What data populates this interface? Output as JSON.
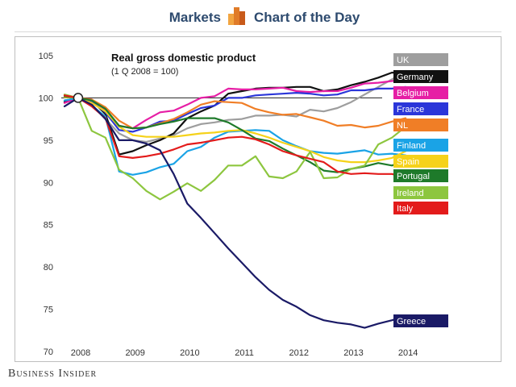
{
  "header": {
    "section": "Markets",
    "feature": "Chart of the Day",
    "logo_colors": [
      "#f2a541",
      "#e07b28",
      "#c85a1a"
    ]
  },
  "footer": {
    "brand": "Business Insider"
  },
  "chart_data": {
    "type": "line",
    "title": "Real gross domestic product",
    "subtitle": "(1 Q 2008 = 100)",
    "xlabel": "",
    "ylabel": "",
    "ylim": [
      70,
      105
    ],
    "yticks": [
      70,
      75,
      80,
      85,
      90,
      95,
      100,
      105
    ],
    "xlim": [
      2008,
      2014.5
    ],
    "xticks": [
      {
        "label": "2008",
        "value": 2008
      },
      {
        "label": "2009",
        "value": 2009
      },
      {
        "label": "2010",
        "value": 2010
      },
      {
        "label": "2011",
        "value": 2011
      },
      {
        "label": "2012",
        "value": 2012
      },
      {
        "label": "2013",
        "value": 2013
      },
      {
        "label": "2014",
        "value": 2014
      }
    ],
    "baseline": 100,
    "x": [
      2008.0,
      2008.25,
      2008.5,
      2008.75,
      2009.0,
      2009.25,
      2009.5,
      2009.75,
      2010.0,
      2010.25,
      2010.5,
      2010.75,
      2011.0,
      2011.25,
      2011.5,
      2011.75,
      2012.0,
      2012.25,
      2012.5,
      2012.75,
      2013.0,
      2013.25,
      2013.5,
      2013.75,
      2014.0,
      2014.25
    ],
    "series": [
      {
        "name": "UK",
        "color": "#9e9e9e",
        "values": [
          99.6,
          100.0,
          99.2,
          97.5,
          95.8,
          95.0,
          94.8,
          95.2,
          95.6,
          96.4,
          96.9,
          97.1,
          97.4,
          97.5,
          97.9,
          97.9,
          98.0,
          97.8,
          98.6,
          98.4,
          98.8,
          99.5,
          100.4,
          101.3,
          102.2,
          103.2
        ]
      },
      {
        "name": "Germany",
        "color": "#111111",
        "values": [
          99.5,
          100.0,
          99.7,
          98.1,
          93.3,
          93.7,
          94.4,
          95.0,
          95.8,
          97.6,
          98.4,
          99.1,
          100.5,
          100.8,
          101.1,
          101.2,
          101.2,
          101.3,
          101.3,
          100.8,
          101.0,
          101.5,
          101.9,
          102.4,
          103.0,
          102.9
        ]
      },
      {
        "name": "Belgium",
        "color": "#e61ea5",
        "values": [
          99.4,
          100.0,
          99.8,
          98.6,
          96.7,
          96.4,
          97.4,
          98.3,
          98.5,
          99.2,
          100.0,
          100.2,
          101.1,
          101.0,
          101.0,
          101.1,
          101.2,
          100.8,
          100.7,
          100.8,
          100.8,
          101.2,
          101.7,
          101.8,
          102.0,
          102.2
        ]
      },
      {
        "name": "France",
        "color": "#2b36d9",
        "values": [
          99.7,
          100.0,
          99.6,
          98.3,
          96.2,
          96.0,
          96.5,
          97.2,
          97.3,
          98.1,
          98.8,
          99.1,
          100.0,
          100.0,
          100.3,
          100.4,
          100.5,
          100.6,
          100.5,
          100.3,
          100.4,
          100.9,
          100.9,
          101.1,
          101.1,
          101.3
        ]
      },
      {
        "name": "NL",
        "color": "#f07e26",
        "values": [
          100.3,
          100.0,
          99.8,
          98.9,
          97.3,
          96.4,
          96.5,
          97.0,
          97.5,
          98.3,
          99.2,
          99.6,
          99.5,
          99.4,
          98.7,
          98.3,
          98.0,
          98.1,
          97.7,
          97.3,
          96.7,
          96.8,
          96.5,
          96.7,
          97.2,
          97.6
        ]
      },
      {
        "name": "Finland",
        "color": "#1aa3e6",
        "values": [
          99.7,
          100.0,
          99.1,
          97.8,
          91.3,
          90.9,
          91.2,
          91.8,
          92.2,
          93.7,
          94.2,
          95.3,
          96.0,
          96.1,
          96.2,
          96.1,
          95.0,
          94.3,
          93.7,
          93.5,
          93.4,
          93.6,
          93.8,
          93.3,
          93.4,
          93.2
        ]
      },
      {
        "name": "Spain",
        "color": "#f5d21a",
        "values": [
          100.1,
          100.0,
          99.4,
          98.4,
          96.6,
          95.6,
          95.4,
          95.4,
          95.4,
          95.6,
          95.8,
          95.9,
          96.1,
          96.2,
          95.8,
          95.3,
          94.7,
          94.2,
          93.7,
          93.0,
          92.6,
          92.4,
          92.4,
          92.6,
          92.9,
          93.7
        ]
      },
      {
        "name": "Portugal",
        "color": "#1e7a2a",
        "values": [
          100.2,
          100.0,
          99.7,
          98.7,
          96.7,
          96.4,
          96.5,
          96.9,
          97.2,
          97.6,
          97.6,
          97.6,
          97.1,
          96.2,
          95.2,
          94.9,
          94.0,
          93.2,
          92.4,
          91.4,
          91.2,
          91.6,
          91.9,
          92.3,
          92.0,
          92.6
        ]
      },
      {
        "name": "Ireland",
        "color": "#8dc63f",
        "values": [
          100.4,
          100.0,
          96.1,
          95.3,
          91.5,
          90.5,
          89.0,
          88.0,
          88.9,
          89.9,
          89.0,
          90.3,
          92.0,
          92.0,
          93.1,
          90.7,
          90.5,
          91.3,
          93.6,
          90.5,
          90.6,
          91.6,
          92.0,
          94.5,
          95.3,
          96.6
        ]
      },
      {
        "name": "Italy",
        "color": "#e31b1b",
        "values": [
          100.3,
          100.0,
          99.0,
          97.6,
          93.1,
          92.9,
          93.1,
          93.4,
          93.9,
          94.5,
          94.7,
          95.0,
          95.3,
          95.4,
          95.1,
          94.5,
          93.7,
          93.2,
          92.8,
          92.4,
          91.3,
          91.0,
          91.1,
          91.0,
          91.0,
          90.6
        ]
      },
      {
        "name": "Greece",
        "color": "#1a1a66",
        "values": [
          99.0,
          100.0,
          99.2,
          97.5,
          95.0,
          95.0,
          94.6,
          93.8,
          91.0,
          87.5,
          85.8,
          84.0,
          82.2,
          80.5,
          78.8,
          77.3,
          76.1,
          75.3,
          74.3,
          73.7,
          73.4,
          73.2,
          72.8,
          73.3,
          73.7,
          74.2
        ]
      }
    ]
  }
}
